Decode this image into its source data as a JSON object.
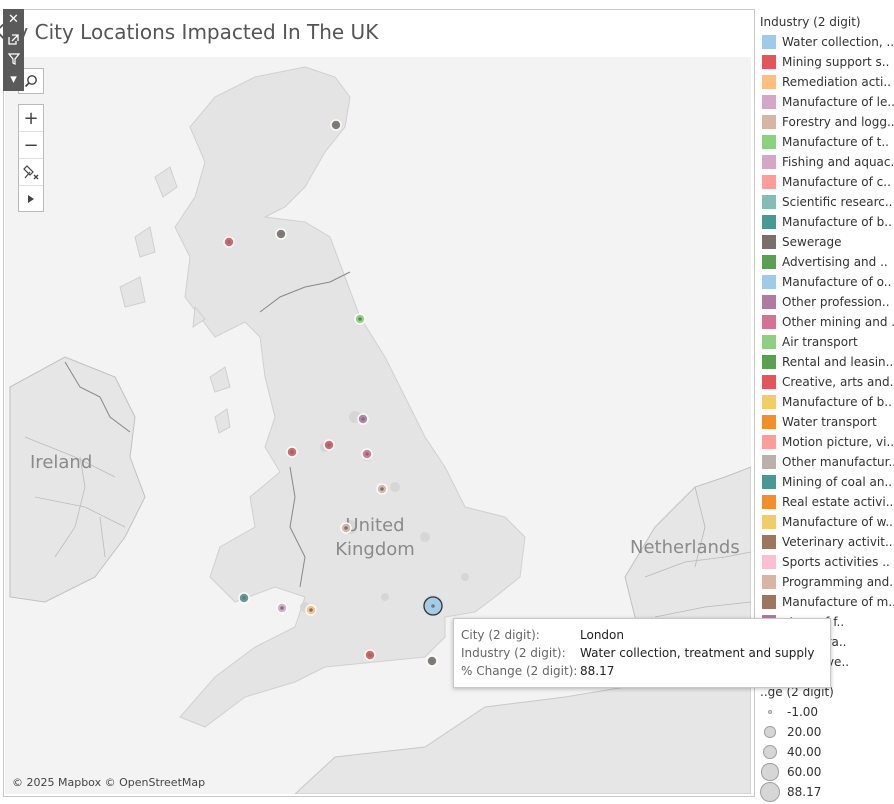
{
  "title": "Key City Locations Impacted In The UK",
  "map": {
    "labels": {
      "ireland": "Ireland",
      "uk_line1": "United",
      "uk_line2": "Kingdom",
      "netherlands": "Netherlands"
    },
    "attribution": "© 2025 Mapbox © OpenStreetMap"
  },
  "toolbar": {
    "close": "close-icon",
    "popout": "popout-icon",
    "filter": "filter-icon",
    "more": "caret-down-icon"
  },
  "map_controls": {
    "search": "search-icon",
    "zoom_in": "+",
    "zoom_out": "−",
    "pin": "pin-icon",
    "play": "play-icon"
  },
  "legend": {
    "title": "Industry (2 digit)",
    "items": [
      {
        "label": "Water collection, ..",
        "color": "#a0cbe8"
      },
      {
        "label": "Mining support s..",
        "color": "#e15759"
      },
      {
        "label": "Remediation acti..",
        "color": "#ffbe7d"
      },
      {
        "label": "Manufacture of le..",
        "color": "#d4a6c8"
      },
      {
        "label": "Forestry and logg..",
        "color": "#d7b5a6"
      },
      {
        "label": "Manufacture of t..",
        "color": "#8cd17d"
      },
      {
        "label": "Fishing and aquac..",
        "color": "#d4a6c8"
      },
      {
        "label": "Manufacture of c..",
        "color": "#ff9d9a"
      },
      {
        "label": "Scientific researc..",
        "color": "#86bcb6"
      },
      {
        "label": "Manufacture of b..",
        "color": "#499894"
      },
      {
        "label": "Sewerage",
        "color": "#79706e"
      },
      {
        "label": "Advertising and ..",
        "color": "#59a14f"
      },
      {
        "label": "Manufacture of o..",
        "color": "#a0cbe8"
      },
      {
        "label": "Other profession..",
        "color": "#b07aa1"
      },
      {
        "label": "Other mining and ..",
        "color": "#d37295"
      },
      {
        "label": "Air transport",
        "color": "#8cd17d"
      },
      {
        "label": "Rental and leasin..",
        "color": "#59a14f"
      },
      {
        "label": "Creative, arts and..",
        "color": "#e15759"
      },
      {
        "label": "Manufacture of b..",
        "color": "#f1ce63"
      },
      {
        "label": "Water transport",
        "color": "#f28e2b"
      },
      {
        "label": "Motion picture, vi..",
        "color": "#ff9d9a"
      },
      {
        "label": "Other manufactur..",
        "color": "#bab0ac"
      },
      {
        "label": "Mining of coal an..",
        "color": "#499894"
      },
      {
        "label": "Real estate activi..",
        "color": "#f28e2b"
      },
      {
        "label": "Manufacture of w..",
        "color": "#f1ce63"
      },
      {
        "label": "Veterinary activit..",
        "color": "#9d7660"
      },
      {
        "label": "Sports activities ..",
        "color": "#fabfd2"
      },
      {
        "label": "Programming and..",
        "color": "#d7b5a6"
      },
      {
        "label": "Manufacture of m..",
        "color": "#9d7660"
      },
      {
        "label": "..ture of f..",
        "color": "#b07aa1"
      },
      {
        "label": "..ministra..",
        "color": "#bab0ac"
      },
      {
        "label": "..and inve..",
        "color": "#86bcb6"
      }
    ],
    "size_title": "..ge (2 digit)",
    "size_items": [
      {
        "label": "-1.00",
        "value": -1.0
      },
      {
        "label": "20.00",
        "value": 20.0
      },
      {
        "label": "40.00",
        "value": 40.0
      },
      {
        "label": "60.00",
        "value": 60.0
      },
      {
        "label": "88.17",
        "value": 88.17
      }
    ]
  },
  "tooltip": {
    "rows": [
      {
        "key": "City (2 digit):",
        "value": "London"
      },
      {
        "key": "Industry (2 digit):",
        "value": "Water collection, treatment and supply"
      },
      {
        "key": "% Change (2 digit):",
        "value": "88.17"
      }
    ]
  },
  "city_marks": [
    {
      "name": "london",
      "color": "#a0cbe8",
      "selected": true
    },
    {
      "name": "aberdeen",
      "color": "#79706e"
    },
    {
      "name": "glasgow",
      "color": "#e15759"
    },
    {
      "name": "edinburgh",
      "color": "#79706e"
    },
    {
      "name": "newcastle",
      "color": "#8cd17d"
    },
    {
      "name": "leeds",
      "color": "#b07aa1"
    },
    {
      "name": "manchester",
      "color": "#e15759"
    },
    {
      "name": "liverpool",
      "color": "#e15759"
    },
    {
      "name": "sheffield",
      "color": "#d37295"
    },
    {
      "name": "nottingham",
      "color": "#d7b5a6"
    },
    {
      "name": "birmingham",
      "color": "#d7b5a6"
    },
    {
      "name": "cardiff",
      "color": "#499894"
    },
    {
      "name": "bristol",
      "color": "#d4a6c8"
    },
    {
      "name": "bath",
      "color": "#ffbe7d"
    },
    {
      "name": "southampton",
      "color": "#e15759"
    },
    {
      "name": "brighton",
      "color": "#79706e"
    }
  ]
}
